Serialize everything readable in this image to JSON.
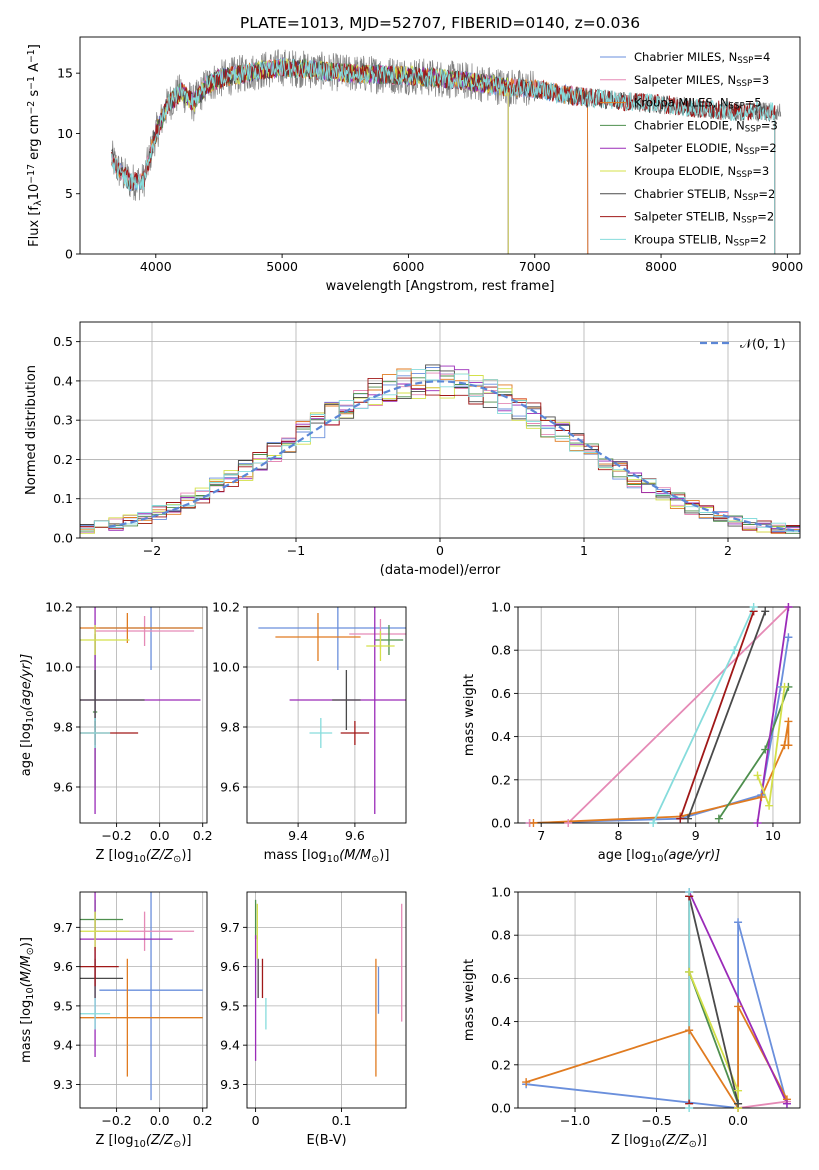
{
  "figure_title": "PLATE=1013, MJD=52707, FIBERID=0140, z=0.036",
  "colors": {
    "chabrier_miles": "#6a8fdc",
    "salpeter_miles": "#e58ab6",
    "kroupa_miles": "#e07b20",
    "chabrier_elodie": "#4e8f4e",
    "salpeter_elodie": "#9a2bb8",
    "kroupa_elodie": "#d4e04a",
    "chabrier_stelib": "#4a4a4a",
    "salpeter_stelib": "#a01818",
    "kroupa_stelib": "#86dcdc",
    "data": "#7f7f7f",
    "normal": "#5b86d6"
  },
  "chart_data": [
    {
      "id": "spectrum",
      "type": "line",
      "title": "PLATE=1013, MJD=52707, FIBERID=0140, z=0.036",
      "xlabel": "wavelength [Angstrom, rest frame]",
      "ylabel": "Flux [f_λ10^-17 erg cm^-2 s^-1 A^-1]",
      "xlim": [
        3400,
        9100
      ],
      "ylim": [
        0,
        18
      ],
      "xticks": [
        4000,
        5000,
        6000,
        7000,
        8000,
        9000
      ],
      "yticks": [
        0,
        5,
        10,
        15
      ],
      "legend_position": "right",
      "legend": [
        "Chabrier MILES, N_SSP=4",
        "Salpeter MILES, N_SSP=3",
        "Kroupa MILES, N_SSP=5",
        "Chabrier ELODIE, N_SSP=3",
        "Salpeter ELODIE, N_SSP=2",
        "Kroupa ELODIE, N_SSP=3",
        "Chabrier STELIB, N_SSP=2",
        "Salpeter STELIB, N_SSP=2",
        "Kroupa STELIB, N_SSP=2"
      ],
      "continuum": {
        "x": [
          3650,
          3700,
          3800,
          3900,
          4000,
          4100,
          4200,
          4300,
          4400,
          4500,
          4700,
          5000,
          5300,
          5500,
          6000,
          6300,
          6500,
          6800,
          7000,
          7200,
          7400,
          7600,
          7800,
          8000,
          8200,
          8400,
          8600,
          8800
        ],
        "y": [
          8,
          7,
          6,
          6,
          10,
          12.5,
          13.5,
          12.5,
          14,
          14.5,
          15,
          15.5,
          15.2,
          15,
          14.8,
          14.5,
          14.3,
          13.8,
          13.7,
          13.3,
          13,
          12.8,
          12.6,
          12.4,
          12.2,
          12.0,
          11.8,
          11.8
        ]
      },
      "series": [
        {
          "name": "Chabrier MILES, N_SSP=4",
          "color": "chabrier_miles",
          "xrange": [
            3650,
            7420
          ]
        },
        {
          "name": "Salpeter MILES, N_SSP=3",
          "color": "salpeter_miles",
          "xrange": [
            3650,
            7420
          ]
        },
        {
          "name": "Kroupa MILES, N_SSP=5",
          "color": "kroupa_miles",
          "xrange": [
            3650,
            7420
          ]
        },
        {
          "name": "Chabrier ELODIE, N_SSP=3",
          "color": "chabrier_elodie",
          "xrange": [
            4000,
            6790
          ]
        },
        {
          "name": "Salpeter ELODIE, N_SSP=2",
          "color": "salpeter_elodie",
          "xrange": [
            4000,
            6790
          ]
        },
        {
          "name": "Kroupa ELODIE, N_SSP=3",
          "color": "kroupa_elodie",
          "xrange": [
            4000,
            6790
          ]
        },
        {
          "name": "Chabrier STELIB, N_SSP=2",
          "color": "chabrier_stelib",
          "xrange": [
            3650,
            8900
          ]
        },
        {
          "name": "Salpeter STELIB, N_SSP=2",
          "color": "salpeter_stelib",
          "xrange": [
            3650,
            8900
          ]
        },
        {
          "name": "Kroupa STELIB, N_SSP=2",
          "color": "kroupa_stelib",
          "xrange": [
            3650,
            8900
          ]
        }
      ]
    },
    {
      "id": "residuals",
      "type": "line",
      "xlabel": "(data-model)/error",
      "ylabel": "Normed distribution",
      "xlim": [
        -2.5,
        2.5
      ],
      "ylim": [
        0,
        0.55
      ],
      "xticks": [
        -2,
        -1,
        0,
        1,
        2
      ],
      "yticks": [
        0.0,
        0.1,
        0.2,
        0.3,
        0.4,
        0.5
      ],
      "grid": true,
      "legend_position": "top-right",
      "legend": [
        "𝒩(0, 1)"
      ],
      "bin_width": 0.1,
      "bin_start": -2.5
    },
    {
      "id": "age_vs_Z",
      "type": "scatter",
      "xlabel": "Z [log10(Z/Z⊙)]",
      "ylabel": "age  [log10(age/yr)]",
      "xlim": [
        -0.37,
        0.22
      ],
      "ylim": [
        9.48,
        10.2
      ],
      "xticks": [
        -0.2,
        0.0,
        0.2
      ],
      "xticklabels": [
        "−0.2",
        "0.0",
        "0.2"
      ],
      "yticks": [
        9.6,
        9.8,
        10.0,
        10.2
      ],
      "grid": true,
      "points": [
        {
          "color": "chabrier_miles",
          "x": -0.04,
          "xerr": 0.24,
          "y": 10.13,
          "yerr": 0.14
        },
        {
          "color": "salpeter_miles",
          "x": -0.07,
          "xerr": 0.23,
          "y": 10.12,
          "yerr": 0.05
        },
        {
          "color": "kroupa_miles",
          "x": -0.15,
          "xerr": 0.35,
          "y": 10.13,
          "yerr": 0.05
        },
        {
          "color": "chabrier_elodie",
          "x": -0.3,
          "xerr": 0.01,
          "y": 9.85,
          "yerr": 0.26
        },
        {
          "color": "salpeter_elodie",
          "x": -0.3,
          "xerr": 0.49,
          "y": 9.89,
          "yerr": 0.38
        },
        {
          "color": "kroupa_elodie",
          "x": -0.3,
          "xerr": 0.16,
          "y": 10.09,
          "yerr": 0.05
        },
        {
          "color": "chabrier_stelib",
          "x": -0.3,
          "xerr": 0.23,
          "y": 9.89,
          "yerr": 0.1
        },
        {
          "color": "salpeter_stelib",
          "x": -0.3,
          "xerr": 0.2,
          "y": 9.78,
          "yerr": 0.04
        },
        {
          "color": "kroupa_stelib",
          "x": -0.3,
          "xerr": 0.07,
          "y": 9.78,
          "yerr": 0.05
        }
      ]
    },
    {
      "id": "age_vs_mass",
      "type": "scatter",
      "xlabel": "mass [log10(M/M⊙)]",
      "xlim": [
        9.22,
        9.78
      ],
      "ylim": [
        9.48,
        10.2
      ],
      "xticks": [
        9.4,
        9.6
      ],
      "yticks": [
        9.6,
        9.8,
        10.0,
        10.2
      ],
      "grid": true,
      "points": [
        {
          "color": "chabrier_miles",
          "x": 9.54,
          "xerr": 0.28,
          "y": 10.13,
          "yerr": 0.14
        },
        {
          "color": "salpeter_miles",
          "x": 9.69,
          "xerr": 0.11,
          "y": 10.11,
          "yerr": 0.05
        },
        {
          "color": "kroupa_miles",
          "x": 9.47,
          "xerr": 0.15,
          "y": 10.1,
          "yerr": 0.08
        },
        {
          "color": "chabrier_elodie",
          "x": 9.72,
          "xerr": 0.05,
          "y": 10.09,
          "yerr": 0.05
        },
        {
          "color": "salpeter_elodie",
          "x": 9.67,
          "xerr": 0.3,
          "y": 9.89,
          "yerr": 0.38
        },
        {
          "color": "kroupa_elodie",
          "x": 9.69,
          "xerr": 0.05,
          "y": 10.07,
          "yerr": 0.05
        },
        {
          "color": "chabrier_stelib",
          "x": 9.57,
          "xerr": 0.05,
          "y": 9.89,
          "yerr": 0.1
        },
        {
          "color": "salpeter_stelib",
          "x": 9.6,
          "xerr": 0.05,
          "y": 9.78,
          "yerr": 0.04
        },
        {
          "color": "kroupa_stelib",
          "x": 9.48,
          "xerr": 0.04,
          "y": 9.78,
          "yerr": 0.05
        }
      ]
    },
    {
      "id": "mass_weight_vs_age",
      "type": "line",
      "xlabel": "age  [log10(age/yr)]",
      "ylabel": "mass weight",
      "xlim": [
        6.7,
        10.35
      ],
      "ylim": [
        0,
        1.0
      ],
      "xticks": [
        7,
        8,
        9,
        10
      ],
      "yticks": [
        0.0,
        0.2,
        0.4,
        0.6,
        0.8,
        1.0
      ],
      "grid": true,
      "series": [
        {
          "color": "chabrier_miles",
          "x": [
            6.85,
            8.8,
            9.85,
            10.1,
            10.2
          ],
          "y": [
            0.0,
            0.02,
            0.13,
            0.63,
            0.86
          ]
        },
        {
          "color": "salpeter_miles",
          "x": [
            6.85,
            7.35,
            10.2
          ],
          "y": [
            0.0,
            0.0,
            1.0
          ]
        },
        {
          "color": "kroupa_miles",
          "x": [
            6.9,
            8.8,
            9.85,
            10.15,
            10.2,
            10.2
          ],
          "y": [
            0.0,
            0.03,
            0.12,
            0.36,
            0.47,
            0.36
          ]
        },
        {
          "color": "chabrier_elodie",
          "x": [
            9.3,
            9.9,
            10.2
          ],
          "y": [
            0.02,
            0.34,
            0.63
          ]
        },
        {
          "color": "salpeter_elodie",
          "x": [
            9.8,
            10.2
          ],
          "y": [
            0.0,
            1.0
          ]
        },
        {
          "color": "kroupa_elodie",
          "x": [
            9.8,
            9.95,
            10.15
          ],
          "y": [
            0.22,
            0.08,
            0.63
          ]
        },
        {
          "color": "chabrier_stelib",
          "x": [
            8.9,
            9.9
          ],
          "y": [
            0.02,
            0.98
          ]
        },
        {
          "color": "salpeter_stelib",
          "x": [
            8.8,
            9.75
          ],
          "y": [
            0.02,
            0.98
          ]
        },
        {
          "color": "kroupa_stelib",
          "x": [
            8.45,
            9.5,
            9.75
          ],
          "y": [
            0.0,
            0.8,
            1.0
          ]
        }
      ]
    },
    {
      "id": "mass_vs_Z",
      "type": "scatter",
      "xlabel": "Z [log10(Z/Z⊙)]",
      "ylabel": "mass [log10(M/M⊙)]",
      "xlim": [
        -0.37,
        0.22
      ],
      "ylim": [
        9.24,
        9.79
      ],
      "xticks": [
        -0.2,
        0.0,
        0.2
      ],
      "xticklabels": [
        "−0.2",
        "0.0",
        "0.2"
      ],
      "yticks": [
        9.3,
        9.4,
        9.5,
        9.6,
        9.7
      ],
      "grid": true,
      "points": [
        {
          "color": "chabrier_miles",
          "x": -0.04,
          "xerr": 0.24,
          "y": 9.54,
          "yerr": 0.28
        },
        {
          "color": "salpeter_miles",
          "x": -0.07,
          "xerr": 0.23,
          "y": 9.69,
          "yerr": 0.05
        },
        {
          "color": "kroupa_miles",
          "x": -0.15,
          "xerr": 0.35,
          "y": 9.47,
          "yerr": 0.15
        },
        {
          "color": "chabrier_elodie",
          "x": -0.3,
          "xerr": 0.13,
          "y": 9.72,
          "yerr": 0.05
        },
        {
          "color": "salpeter_elodie",
          "x": -0.3,
          "xerr": 0.36,
          "y": 9.67,
          "yerr": 0.3
        },
        {
          "color": "kroupa_elodie",
          "x": -0.3,
          "xerr": 0.16,
          "y": 9.69,
          "yerr": 0.05
        },
        {
          "color": "chabrier_stelib",
          "x": -0.3,
          "xerr": 0.13,
          "y": 9.57,
          "yerr": 0.05
        },
        {
          "color": "salpeter_stelib",
          "x": -0.3,
          "xerr": 0.11,
          "y": 9.6,
          "yerr": 0.05
        },
        {
          "color": "kroupa_stelib",
          "x": -0.3,
          "xerr": 0.07,
          "y": 9.48,
          "yerr": 0.04
        }
      ]
    },
    {
      "id": "mass_vs_ebv",
      "type": "scatter",
      "xlabel": "E(B-V)",
      "xlim": [
        -0.01,
        0.175
      ],
      "ylim": [
        9.24,
        9.79
      ],
      "xticks": [
        0.0,
        0.1
      ],
      "yticks": [
        9.3,
        9.4,
        9.5,
        9.6,
        9.7
      ],
      "grid": true,
      "points": [
        {
          "color": "chabrier_miles",
          "x": 0.143,
          "y": 9.54,
          "yerr": 0.06
        },
        {
          "color": "salpeter_miles",
          "x": 0.17,
          "y": 9.61,
          "yerr": 0.15
        },
        {
          "color": "kroupa_miles",
          "x": 0.14,
          "y": 9.47,
          "yerr": 0.15
        },
        {
          "color": "chabrier_elodie",
          "x": 0.0,
          "y": 9.72,
          "yerr": 0.05
        },
        {
          "color": "salpeter_elodie",
          "x": 0.0,
          "y": 9.52,
          "yerr": 0.16
        },
        {
          "color": "kroupa_elodie",
          "x": 0.002,
          "y": 9.69,
          "yerr": 0.07
        },
        {
          "color": "chabrier_stelib",
          "x": 0.003,
          "y": 9.57,
          "yerr": 0.05
        },
        {
          "color": "salpeter_stelib",
          "x": 0.008,
          "y": 9.57,
          "yerr": 0.05
        },
        {
          "color": "kroupa_stelib",
          "x": 0.012,
          "y": 9.48,
          "yerr": 0.04
        }
      ]
    },
    {
      "id": "mass_weight_vs_Z",
      "type": "line",
      "xlabel": "Z [log10(Z/Z⊙)]",
      "ylabel": "mass weight",
      "xlim": [
        -1.35,
        0.38
      ],
      "ylim": [
        0,
        1.0
      ],
      "xticks": [
        -1.0,
        -0.5,
        0.0
      ],
      "xticklabels": [
        "−1.0",
        "−0.5",
        "0.0"
      ],
      "yticks": [
        0.0,
        0.2,
        0.4,
        0.6,
        0.8,
        1.0
      ],
      "grid": true,
      "series": [
        {
          "color": "chabrier_miles",
          "x": [
            -1.3,
            0.0,
            0.0,
            0.3
          ],
          "y": [
            0.11,
            0.0,
            0.86,
            0.02
          ]
        },
        {
          "color": "salpeter_miles",
          "x": [
            0.0,
            0.3
          ],
          "y": [
            0.0,
            0.03
          ]
        },
        {
          "color": "kroupa_miles",
          "x": [
            -1.3,
            -0.3,
            0.0,
            0.0,
            0.3
          ],
          "y": [
            0.12,
            0.36,
            0.0,
            0.47,
            0.04
          ]
        },
        {
          "color": "chabrier_elodie",
          "x": [
            -0.3,
            0.0
          ],
          "y": [
            0.63,
            0.02
          ]
        },
        {
          "color": "salpeter_elodie",
          "x": [
            -0.3,
            0.3
          ],
          "y": [
            1.0,
            0.02
          ]
        },
        {
          "color": "kroupa_elodie",
          "x": [
            -0.3,
            0.0,
            0.0
          ],
          "y": [
            0.63,
            0.08,
            0.0
          ]
        },
        {
          "color": "chabrier_stelib",
          "x": [
            -0.3,
            0.0
          ],
          "y": [
            0.98,
            0.02
          ]
        },
        {
          "color": "salpeter_stelib",
          "x": [
            -0.3,
            -0.3
          ],
          "y": [
            0.98,
            0.02
          ]
        },
        {
          "color": "kroupa_stelib",
          "x": [
            -0.3,
            -0.3
          ],
          "y": [
            1.0,
            0.0
          ]
        }
      ]
    }
  ]
}
